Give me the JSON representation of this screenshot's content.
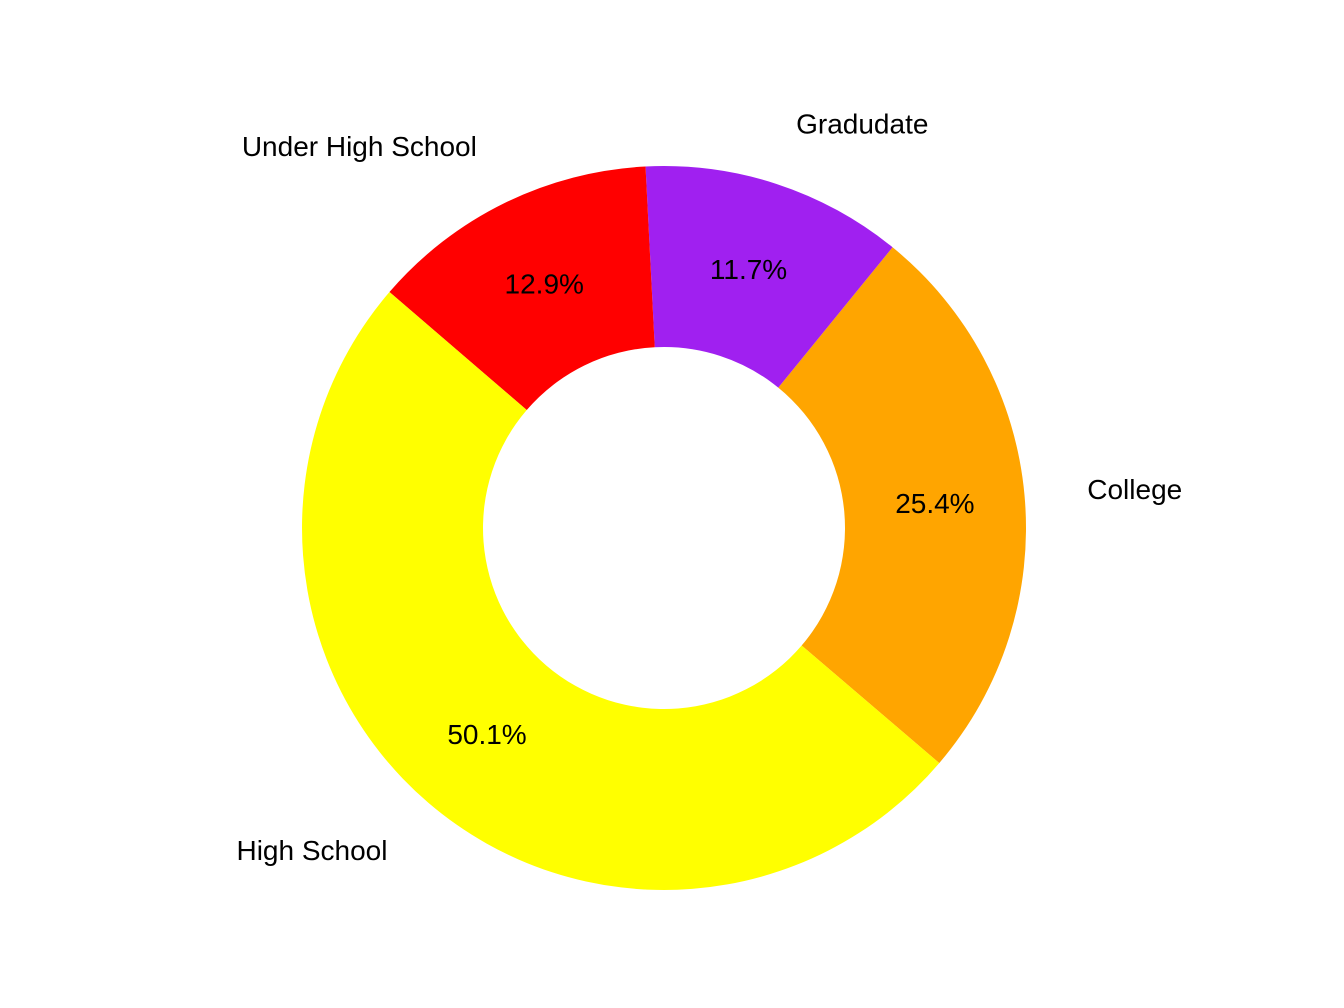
{
  "chart_data": {
    "type": "pie",
    "donut": true,
    "title": "",
    "categories": [
      "College",
      "Gradudate",
      "Under High School",
      "High School"
    ],
    "values": [
      25.4,
      11.7,
      12.9,
      50.1
    ],
    "value_labels": [
      "25.4%",
      "11.7%",
      "12.9%",
      "50.1%"
    ],
    "colors": [
      "#FFA500",
      "#A020F0",
      "#FF0000",
      "#FFFF00"
    ],
    "legend": "none",
    "grid": false
  }
}
